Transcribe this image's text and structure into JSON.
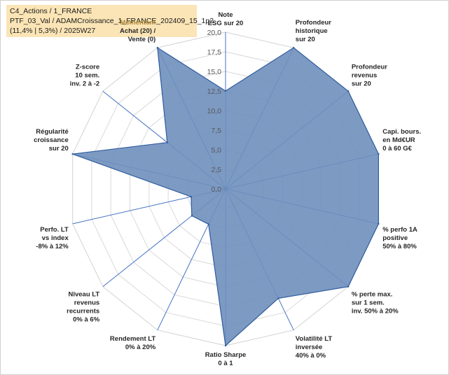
{
  "header": {
    "line1": "C4_Actions / 1_FRANCE",
    "line2": "PTF_03_Val / ADAMCroissance_1_FRANCE_202409_15_1p2",
    "line3": "(11,4% | 5,3%) / 2025W27"
  },
  "chart_data": {
    "type": "radar",
    "range": [
      0,
      20
    ],
    "tick_step": 2.5,
    "tick_labels": [
      "0,0",
      "2,5",
      "5,0",
      "7,5",
      "10,0",
      "12,5",
      "15,0",
      "17,5",
      "20,0"
    ],
    "grid": true,
    "colors": {
      "fill": "#6f8fbd",
      "stroke": "#2e5c9e",
      "grid": "#d9d9d9",
      "spoke": "#4472c4"
    },
    "axes": [
      {
        "lines": [
          "Note",
          "ESG sur 20"
        ],
        "value": 12.5
      },
      {
        "lines": [
          "Profondeur",
          "historique",
          "sur 20"
        ],
        "value": 20
      },
      {
        "lines": [
          "Profondeur",
          "revenus",
          "sur 20"
        ],
        "value": 20
      },
      {
        "lines": [
          "Capi. bours.",
          "en Md€UR",
          "0 à 60 G€"
        ],
        "value": 20
      },
      {
        "lines": [
          "% perfo 1A",
          "positive",
          "50% à 80%"
        ],
        "value": 20
      },
      {
        "lines": [
          "% perte max.",
          "sur 1 sem.",
          "inv. 50% à 20%"
        ],
        "value": 20
      },
      {
        "lines": [
          "Volatilité LT",
          "inversée",
          "40% à 0%"
        ],
        "value": 15.5
      },
      {
        "lines": [
          "Ratio Sharpe",
          "0 à 1"
        ],
        "value": 20
      },
      {
        "lines": [
          "Rendement LT",
          "0% à 20%"
        ],
        "value": 5
      },
      {
        "lines": [
          "Niveau LT",
          "revenus",
          "recurrents",
          "0% à 6%"
        ],
        "value": 5.5
      },
      {
        "lines": [
          "Perfo. LT",
          "vs index",
          "-8% à 12%"
        ],
        "value": 4.5
      },
      {
        "lines": [
          "Régularité",
          "croissance",
          "sur 20"
        ],
        "value": 20
      },
      {
        "lines": [
          "Z-score",
          "10 sem.",
          "inv. 2 à -2"
        ],
        "value": 9.5
      },
      {
        "lines": [
          "Momentum",
          "Achat (20) /",
          "Vente (0)"
        ],
        "value": 20
      }
    ]
  }
}
